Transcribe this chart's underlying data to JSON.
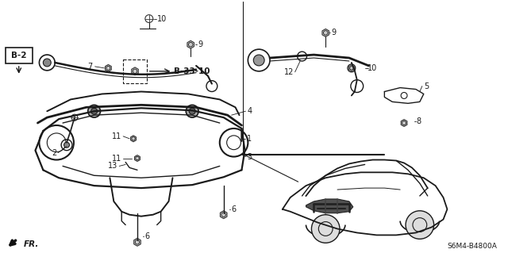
{
  "background_color": "#ffffff",
  "line_color": "#1a1a1a",
  "text_color": "#1a1a1a",
  "diagram_code": "S6M4-B4800A",
  "fr_label": "FR.",
  "figsize": [
    6.4,
    3.19
  ],
  "dpi": 100
}
